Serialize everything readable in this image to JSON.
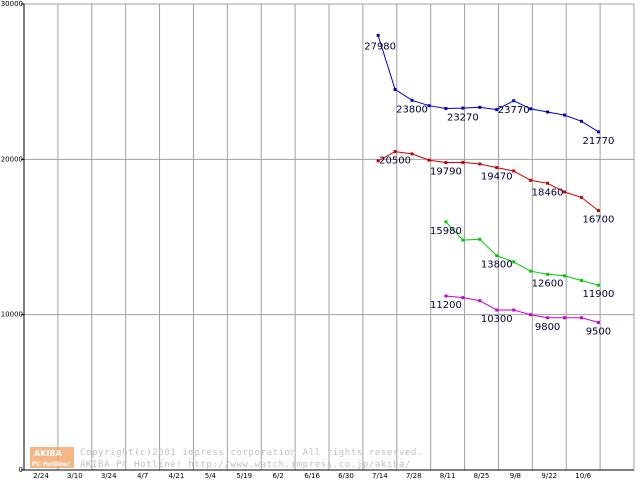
{
  "chart_data": {
    "type": "line",
    "title": "",
    "xlabel": "",
    "ylabel": "",
    "ylim": [
      0,
      30000
    ],
    "yticks": [
      {
        "value": 0,
        "label": "0"
      },
      {
        "value": 10000,
        "label": "10000"
      },
      {
        "value": 20000,
        "label": "20000"
      },
      {
        "value": 30000,
        "label": "30000"
      }
    ],
    "xlim": [
      0,
      18
    ],
    "xticks": [
      {
        "index": 1,
        "label": "2/24"
      },
      {
        "index": 2,
        "label": "3/10"
      },
      {
        "index": 3,
        "label": "3/24"
      },
      {
        "index": 4,
        "label": "4/7"
      },
      {
        "index": 5,
        "label": "4/21"
      },
      {
        "index": 6,
        "label": "5/4"
      },
      {
        "index": 7,
        "label": "5/19"
      },
      {
        "index": 8,
        "label": "6/2"
      },
      {
        "index": 9,
        "label": "6/16"
      },
      {
        "index": 10,
        "label": "6/30"
      },
      {
        "index": 11,
        "label": "7/14"
      },
      {
        "index": 12,
        "label": "7/28"
      },
      {
        "index": 13,
        "label": "8/11"
      },
      {
        "index": 14,
        "label": "8/25"
      },
      {
        "index": 15,
        "label": "9/8"
      },
      {
        "index": 16,
        "label": "9/22"
      },
      {
        "index": 17,
        "label": "10/6"
      }
    ],
    "grid": true,
    "series": [
      {
        "name": "blue",
        "color": "#0000cc",
        "points": [
          {
            "x": 10.45,
            "y": 27980
          },
          {
            "x": 10.95,
            "y": 24500
          },
          {
            "x": 11.45,
            "y": 23800
          },
          {
            "x": 11.95,
            "y": 23450
          },
          {
            "x": 12.45,
            "y": 23270
          },
          {
            "x": 12.95,
            "y": 23300
          },
          {
            "x": 13.45,
            "y": 23350
          },
          {
            "x": 13.95,
            "y": 23200
          },
          {
            "x": 14.45,
            "y": 23770
          },
          {
            "x": 14.95,
            "y": 23250
          },
          {
            "x": 15.45,
            "y": 23050
          },
          {
            "x": 15.95,
            "y": 22850
          },
          {
            "x": 16.45,
            "y": 22450
          },
          {
            "x": 16.95,
            "y": 21770
          }
        ],
        "labels": [
          {
            "text": "27980",
            "x": 10.45,
            "y": 27980,
            "pos": "below-left"
          },
          {
            "text": "23800",
            "x": 11.45,
            "y": 23800,
            "pos": "below"
          },
          {
            "text": "23270",
            "x": 12.95,
            "y": 23270,
            "pos": "below"
          },
          {
            "text": "23770",
            "x": 14.45,
            "y": 23770,
            "pos": "below"
          },
          {
            "text": "21770",
            "x": 16.95,
            "y": 21770,
            "pos": "below"
          }
        ]
      },
      {
        "name": "red",
        "color": "#cc0000",
        "points": [
          {
            "x": 10.45,
            "y": 19900
          },
          {
            "x": 10.95,
            "y": 20500
          },
          {
            "x": 11.45,
            "y": 20350
          },
          {
            "x": 11.95,
            "y": 19950
          },
          {
            "x": 12.45,
            "y": 19790
          },
          {
            "x": 12.95,
            "y": 19800
          },
          {
            "x": 13.45,
            "y": 19700
          },
          {
            "x": 13.95,
            "y": 19470
          },
          {
            "x": 14.45,
            "y": 19250
          },
          {
            "x": 14.95,
            "y": 18650
          },
          {
            "x": 15.45,
            "y": 18460
          },
          {
            "x": 15.95,
            "y": 17900
          },
          {
            "x": 16.45,
            "y": 17550
          },
          {
            "x": 16.95,
            "y": 16700
          }
        ],
        "labels": [
          {
            "text": "20500",
            "x": 10.95,
            "y": 20500,
            "pos": "below"
          },
          {
            "text": "19790",
            "x": 12.45,
            "y": 19790,
            "pos": "below"
          },
          {
            "text": "19470",
            "x": 13.95,
            "y": 19470,
            "pos": "below"
          },
          {
            "text": "18460",
            "x": 15.45,
            "y": 18460,
            "pos": "below"
          },
          {
            "text": "16700",
            "x": 16.95,
            "y": 16700,
            "pos": "below"
          }
        ]
      },
      {
        "name": "green",
        "color": "#00cc00",
        "points": [
          {
            "x": 12.45,
            "y": 15980
          },
          {
            "x": 12.95,
            "y": 14800
          },
          {
            "x": 13.45,
            "y": 14850
          },
          {
            "x": 13.95,
            "y": 13800
          },
          {
            "x": 14.45,
            "y": 13400
          },
          {
            "x": 14.95,
            "y": 12800
          },
          {
            "x": 15.45,
            "y": 12600
          },
          {
            "x": 15.95,
            "y": 12500
          },
          {
            "x": 16.45,
            "y": 12200
          },
          {
            "x": 16.95,
            "y": 11900
          }
        ],
        "labels": [
          {
            "text": "15980",
            "x": 12.45,
            "y": 15980,
            "pos": "below"
          },
          {
            "text": "13800",
            "x": 13.95,
            "y": 13800,
            "pos": "below"
          },
          {
            "text": "12600",
            "x": 15.45,
            "y": 12600,
            "pos": "below"
          },
          {
            "text": "11900",
            "x": 16.95,
            "y": 11900,
            "pos": "below"
          }
        ]
      },
      {
        "name": "magenta",
        "color": "#cc00cc",
        "points": [
          {
            "x": 12.45,
            "y": 11200
          },
          {
            "x": 12.95,
            "y": 11100
          },
          {
            "x": 13.45,
            "y": 10900
          },
          {
            "x": 13.95,
            "y": 10300
          },
          {
            "x": 14.45,
            "y": 10300
          },
          {
            "x": 14.95,
            "y": 10000
          },
          {
            "x": 15.45,
            "y": 9800
          },
          {
            "x": 15.95,
            "y": 9800
          },
          {
            "x": 16.45,
            "y": 9800
          },
          {
            "x": 16.95,
            "y": 9500
          }
        ],
        "labels": [
          {
            "text": "11200",
            "x": 12.45,
            "y": 11200,
            "pos": "below"
          },
          {
            "text": "10300",
            "x": 13.95,
            "y": 10300,
            "pos": "below"
          },
          {
            "text": "9800",
            "x": 15.45,
            "y": 9800,
            "pos": "below"
          },
          {
            "text": "9500",
            "x": 16.95,
            "y": 9500,
            "pos": "below"
          }
        ]
      }
    ]
  },
  "footer": {
    "logo_line1": "AKIBA",
    "logo_line2": "PC Hotline!",
    "copyright_line1": "Copyright(c)2001 impress corporation All rights reserved.",
    "copyright_line2": "AKIBA PC Hotline!  http://www.watch.impress.co.jp/akiba/"
  },
  "colors": {
    "grid": "#a0a0a0",
    "axis": "#000000",
    "logo_bg": "#f0a060"
  }
}
